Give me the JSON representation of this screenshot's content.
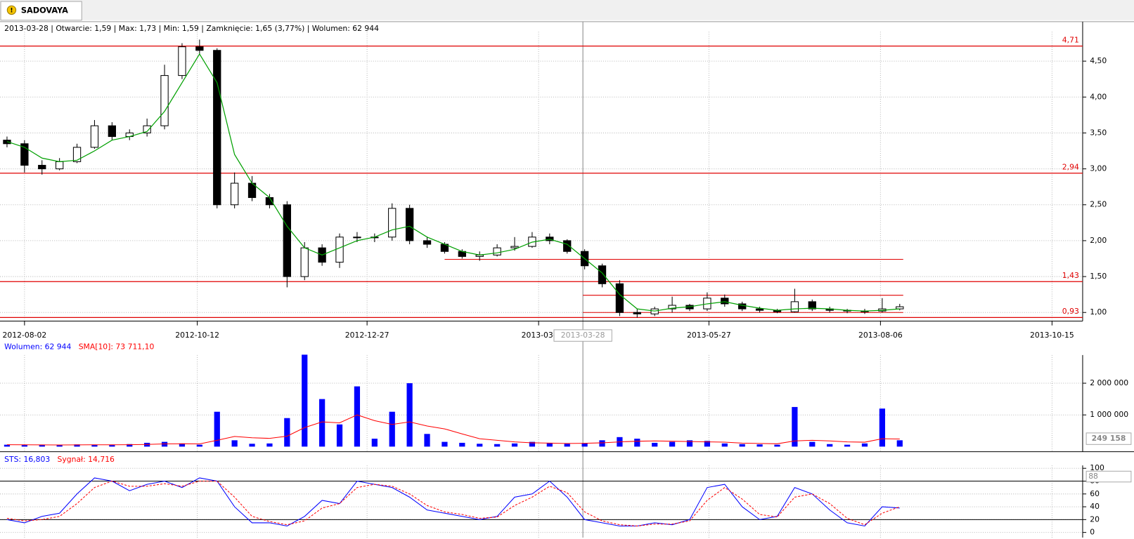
{
  "tab": "SADOVAYA",
  "chart_data": [
    {
      "type": "candlestick",
      "header": "2013-03-28 | Otwarcie: 1,59 | Max: 1,73 | Min: 1,59 | Zamknięcie: 1,65 (3,77%) | Wolumen: 62 944",
      "open": [
        3.4,
        3.35,
        3.05,
        3.0,
        3.1,
        3.3,
        3.6,
        3.45,
        3.5,
        3.6,
        4.3,
        4.7,
        4.65,
        2.5,
        2.8,
        2.6,
        2.5,
        1.5,
        1.9,
        1.7,
        2.05,
        2.05,
        2.05,
        2.45,
        2.0,
        1.95,
        1.85,
        1.78,
        1.8,
        1.9,
        1.92,
        2.05,
        2.0,
        1.85,
        1.65,
        1.4,
        1.0,
        0.98,
        1.05,
        1.1,
        1.05,
        1.2,
        1.12,
        1.05,
        1.03,
        1.01,
        1.15,
        1.05,
        1.03,
        1.02,
        1.02,
        1.05
      ],
      "high": [
        3.45,
        3.4,
        3.12,
        3.15,
        3.35,
        3.68,
        3.65,
        3.55,
        3.7,
        4.45,
        4.75,
        4.8,
        4.68,
        2.95,
        2.9,
        2.65,
        2.55,
        1.98,
        1.95,
        2.1,
        2.12,
        2.1,
        2.52,
        2.5,
        2.05,
        1.98,
        1.88,
        1.85,
        1.95,
        2.05,
        2.12,
        2.1,
        2.02,
        1.88,
        1.68,
        1.45,
        1.05,
        1.08,
        1.22,
        1.12,
        1.28,
        1.25,
        1.15,
        1.08,
        1.05,
        1.33,
        1.18,
        1.08,
        1.05,
        1.05,
        1.2,
        1.12
      ],
      "low": [
        3.3,
        2.95,
        2.92,
        2.98,
        3.08,
        3.28,
        3.4,
        3.4,
        3.45,
        3.55,
        4.25,
        4.6,
        2.45,
        2.45,
        2.55,
        2.45,
        1.35,
        1.45,
        1.65,
        1.62,
        1.98,
        1.98,
        2.0,
        1.95,
        1.9,
        1.82,
        1.75,
        1.72,
        1.78,
        1.86,
        1.9,
        1.95,
        1.82,
        1.6,
        1.35,
        0.95,
        0.93,
        0.95,
        1.0,
        1.02,
        1.02,
        1.08,
        1.02,
        1.0,
        0.99,
        1.0,
        1.02,
        1.0,
        0.99,
        0.98,
        1.0,
        1.03
      ],
      "close": [
        3.35,
        3.05,
        3.0,
        3.1,
        3.3,
        3.6,
        3.45,
        3.5,
        3.6,
        4.3,
        4.7,
        4.65,
        2.5,
        2.8,
        2.6,
        2.5,
        1.5,
        1.9,
        1.7,
        2.05,
        2.05,
        2.05,
        2.45,
        2.0,
        1.95,
        1.85,
        1.78,
        1.8,
        1.9,
        1.92,
        2.05,
        2.0,
        1.85,
        1.65,
        1.4,
        1.0,
        0.98,
        1.05,
        1.1,
        1.05,
        1.2,
        1.12,
        1.05,
        1.03,
        1.01,
        1.15,
        1.05,
        1.03,
        1.02,
        1.02,
        1.05,
        1.08
      ],
      "up_color": "#ffffff",
      "down_color": "#000000",
      "ma": {
        "color": "#00a000",
        "values": [
          3.38,
          3.3,
          3.15,
          3.1,
          3.12,
          3.25,
          3.4,
          3.45,
          3.52,
          3.8,
          4.2,
          4.6,
          4.2,
          3.2,
          2.8,
          2.6,
          2.2,
          1.9,
          1.8,
          1.9,
          2.0,
          2.05,
          2.15,
          2.2,
          2.05,
          1.95,
          1.85,
          1.8,
          1.83,
          1.88,
          1.98,
          2.02,
          1.95,
          1.75,
          1.55,
          1.25,
          1.05,
          1.02,
          1.06,
          1.08,
          1.12,
          1.15,
          1.1,
          1.06,
          1.03,
          1.05,
          1.06,
          1.05,
          1.03,
          1.02,
          1.03,
          1.05
        ]
      },
      "xlim": [
        -0.4,
        61.45
      ],
      "xticks": [
        {
          "value": 1,
          "label": "2012-08-02"
        },
        {
          "value": 10.87,
          "label": "2012-10-12"
        },
        {
          "value": 20.57,
          "label": "2012-12-27"
        },
        {
          "value": 30.37,
          "label": "2013-03-"
        },
        {
          "value": 40.1,
          "label": "2013-05-27"
        },
        {
          "value": 49.9,
          "label": "2013-08-06"
        },
        {
          "value": 59.7,
          "label": "2013-10-15"
        }
      ],
      "ylim": [
        0.88,
        5.05
      ],
      "yticks": [
        {
          "value": 1,
          "label": "1,00"
        },
        {
          "value": 1.5,
          "label": "1,50"
        },
        {
          "value": 2,
          "label": "2,00"
        },
        {
          "value": 2.5,
          "label": "2,50"
        },
        {
          "value": 3,
          "label": "3,00"
        },
        {
          "value": 3.5,
          "label": "3,50"
        },
        {
          "value": 4,
          "label": "4,00"
        },
        {
          "value": 4.5,
          "label": "4,50"
        }
      ],
      "grid": true,
      "level_color": "#e00000",
      "levels": [
        {
          "value": 4.71,
          "label": "4,71"
        },
        {
          "value": 2.94,
          "label": "2,94"
        },
        {
          "value": 1.43,
          "label": "1,43"
        },
        {
          "value": 0.93,
          "label": "0,93"
        }
      ],
      "segments": [
        {
          "value": 1.74,
          "from": 25,
          "to": 51.2
        },
        {
          "value": 1.24,
          "from": 32.9,
          "to": 51.2
        },
        {
          "value": 1.0,
          "from": 32.9,
          "to": 51.2
        }
      ],
      "cursor": {
        "x": 32.9,
        "label": "2013-03-28"
      }
    },
    {
      "type": "bar",
      "series": [
        {
          "name": "Wolumen: 62 944",
          "color": "#0000ff",
          "values": [
            60000,
            50000,
            55000,
            45000,
            70000,
            60000,
            50000,
            80000,
            120000,
            150000,
            100000,
            60000,
            1100000,
            200000,
            90000,
            100000,
            900000,
            2900000,
            1500000,
            700000,
            1900000,
            250000,
            1100000,
            2000000,
            400000,
            150000,
            120000,
            90000,
            80000,
            100000,
            150000,
            120000,
            90000,
            100000,
            200000,
            300000,
            250000,
            120000,
            150000,
            200000,
            180000,
            100000,
            80000,
            70000,
            60000,
            1250000,
            150000,
            80000,
            60000,
            100000,
            1200000,
            200000
          ]
        },
        {
          "name": "SMA[10]: 73 711,10",
          "color": "#ff0000",
          "values": [
            60000,
            58000,
            55000,
            52000,
            56000,
            58000,
            57000,
            60000,
            70000,
            85000,
            90000,
            85000,
            200000,
            320000,
            280000,
            260000,
            330000,
            600000,
            780000,
            750000,
            1000000,
            820000,
            700000,
            780000,
            650000,
            560000,
            400000,
            250000,
            200000,
            150000,
            120000,
            110000,
            100000,
            105000,
            120000,
            150000,
            170000,
            180000,
            170000,
            160000,
            150000,
            140000,
            110000,
            100000,
            90000,
            180000,
            200000,
            180000,
            150000,
            140000,
            250000,
            240000
          ]
        }
      ],
      "ylim": [
        -160000,
        2890000
      ],
      "yticks": [
        {
          "value": 1000000,
          "label": "1 000 000"
        },
        {
          "value": 2000000,
          "label": "2 000 000"
        }
      ],
      "grid": true,
      "marker_label": "249 158"
    },
    {
      "type": "line",
      "series": [
        {
          "name": "STS: 16,803",
          "color": "#0000ff",
          "values": [
            20,
            15,
            25,
            30,
            60,
            85,
            80,
            65,
            75,
            80,
            70,
            85,
            80,
            40,
            15,
            15,
            10,
            25,
            50,
            45,
            80,
            75,
            70,
            55,
            35,
            30,
            25,
            20,
            25,
            55,
            60,
            80,
            55,
            20,
            15,
            10,
            10,
            15,
            12,
            20,
            70,
            75,
            40,
            20,
            25,
            70,
            60,
            35,
            15,
            10,
            40,
            38
          ]
        },
        {
          "name": "Sygnał: 14,716",
          "color": "#ff0000",
          "dashed": true,
          "values": [
            22,
            18,
            20,
            25,
            45,
            70,
            80,
            72,
            72,
            76,
            72,
            80,
            80,
            55,
            25,
            17,
            12,
            18,
            38,
            45,
            70,
            75,
            72,
            60,
            42,
            32,
            28,
            22,
            24,
            42,
            55,
            72,
            62,
            32,
            18,
            12,
            10,
            13,
            13,
            18,
            50,
            70,
            52,
            28,
            24,
            55,
            60,
            45,
            22,
            12,
            30,
            40
          ]
        }
      ],
      "ylim": [
        -8,
        104.5
      ],
      "yticks": [
        0,
        20,
        40,
        60,
        80,
        100
      ],
      "grid": true,
      "levels": [
        80,
        20
      ],
      "marker_label": "88"
    }
  ]
}
